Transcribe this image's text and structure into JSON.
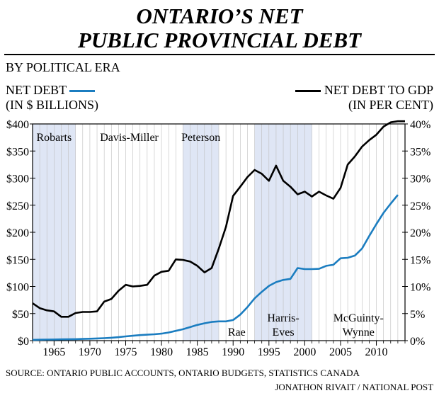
{
  "title_line1": "ONTARIO’S NET",
  "title_line2": "PUBLIC PROVINCIAL DEBT",
  "subtitle": "BY POLITICAL ERA",
  "legend": {
    "left_line1": "NET DEBT",
    "left_line2": "(IN $ BILLIONS)",
    "right_line1": "NET DEBT TO GDP",
    "right_line2": "(IN PER CENT)"
  },
  "footer": {
    "source": "SOURCE: ONTARIO PUBLIC ACCOUNTS, ONTARIO BUDGETS, STATISTICS CANADA",
    "credit": "JONATHON RIVAIT / NATIONAL POST"
  },
  "colors": {
    "net_debt": "#1b7dc0",
    "debt_to_gdp": "#000000",
    "era_band": "#dfe6f5",
    "grid": "#bfbfbf"
  },
  "chart_data": {
    "type": "line",
    "title": "ONTARIO’S NET PUBLIC PROVINCIAL DEBT",
    "xlim": [
      1962,
      2014
    ],
    "x_ticks": [
      1965,
      1970,
      1975,
      1980,
      1985,
      1990,
      1995,
      2000,
      2005,
      2010
    ],
    "x_tick_labels": [
      "1965",
      "1970",
      "1975",
      "1980",
      "1985",
      "1990",
      "1995",
      "2000",
      "2005",
      "2010"
    ],
    "y_left": {
      "label": "NET DEBT (IN $ BILLIONS)",
      "lim": [
        0,
        400
      ],
      "ticks": [
        0,
        50,
        100,
        150,
        200,
        250,
        300,
        350,
        400
      ],
      "tick_labels": [
        "$0",
        "$50",
        "$100",
        "$150",
        "$200",
        "$250",
        "$300",
        "$350",
        "$400"
      ]
    },
    "y_right": {
      "label": "NET DEBT TO GDP (IN PER CENT)",
      "lim": [
        0,
        40
      ],
      "ticks": [
        0,
        5,
        10,
        15,
        20,
        25,
        30,
        35,
        40
      ],
      "tick_labels": [
        "0%",
        "5%",
        "10%",
        "15%",
        "20%",
        "25%",
        "30%",
        "35%",
        "40%"
      ]
    },
    "eras": [
      {
        "name": "Robarts",
        "start": 1962,
        "end": 1968,
        "shaded": true,
        "label_top": true
      },
      {
        "name": "Davis-Miller",
        "start": 1968,
        "end": 1983,
        "shaded": false,
        "label_top": true
      },
      {
        "name": "Peterson",
        "start": 1983,
        "end": 1988,
        "shaded": true,
        "label_top": true
      },
      {
        "name": "Rae",
        "start": 1988,
        "end": 1993,
        "shaded": false,
        "label_top": false
      },
      {
        "name": "Harris-Eves",
        "start": 1993,
        "end": 2001,
        "shaded": true,
        "label_top": false
      },
      {
        "name": "McGuinty-Wynne",
        "start": 2001,
        "end": 2014,
        "shaded": false,
        "label_top": false
      }
    ],
    "series": [
      {
        "name": "NET DEBT",
        "axis": "left",
        "x": [
          1962,
          1963,
          1964,
          1965,
          1966,
          1967,
          1968,
          1969,
          1970,
          1971,
          1972,
          1973,
          1974,
          1975,
          1976,
          1977,
          1978,
          1979,
          1980,
          1981,
          1982,
          1983,
          1984,
          1985,
          1986,
          1987,
          1988,
          1989,
          1990,
          1991,
          1992,
          1993,
          1994,
          1995,
          1996,
          1997,
          1998,
          1999,
          2000,
          2001,
          2002,
          2003,
          2004,
          2005,
          2006,
          2007,
          2008,
          2009,
          2010,
          2011,
          2012,
          2013
        ],
        "values": [
          1.5,
          1.7,
          1.9,
          2.1,
          2.3,
          2.5,
          2.8,
          3.1,
          3.5,
          4.0,
          4.6,
          5.4,
          6.4,
          7.8,
          9.0,
          10.2,
          11.0,
          11.8,
          13.0,
          15.0,
          18.0,
          21.0,
          25.0,
          29.0,
          32.0,
          34.5,
          35.5,
          35.5,
          38.0,
          48.0,
          62.0,
          78.0,
          90.0,
          101.0,
          108.0,
          112.0,
          114.0,
          134.0,
          132.0,
          132.0,
          132.5,
          138.0,
          140.0,
          152.0,
          153.0,
          157.0,
          170.0,
          193.0,
          215.0,
          236.0,
          253.0,
          269.0
        ]
      },
      {
        "name": "NET DEBT TO GDP",
        "axis": "right",
        "x": [
          1962,
          1963,
          1964,
          1965,
          1966,
          1967,
          1968,
          1969,
          1970,
          1971,
          1972,
          1973,
          1974,
          1975,
          1976,
          1977,
          1978,
          1979,
          1980,
          1981,
          1982,
          1983,
          1984,
          1985,
          1986,
          1987,
          1988,
          1989,
          1990,
          1991,
          1992,
          1993,
          1994,
          1995,
          1996,
          1997,
          1998,
          1999,
          2000,
          2001,
          2002,
          2003,
          2004,
          2005,
          2006,
          2007,
          2008,
          2009,
          2010,
          2011,
          2012,
          2013,
          2014
        ],
        "values": [
          6.9,
          6.0,
          5.6,
          5.4,
          4.4,
          4.4,
          5.1,
          5.3,
          5.3,
          5.4,
          7.2,
          7.7,
          9.2,
          10.3,
          10.0,
          10.1,
          10.3,
          12.0,
          12.7,
          12.9,
          15.0,
          14.9,
          14.6,
          13.8,
          12.6,
          13.4,
          17.0,
          21.0,
          26.7,
          28.4,
          30.2,
          31.5,
          30.8,
          29.5,
          32.3,
          29.5,
          28.4,
          27.0,
          27.5,
          26.6,
          27.5,
          26.8,
          26.2,
          28.2,
          32.5,
          34.0,
          35.8,
          37.0,
          38.0,
          39.5,
          40.3,
          40.5,
          40.5
        ]
      }
    ]
  }
}
